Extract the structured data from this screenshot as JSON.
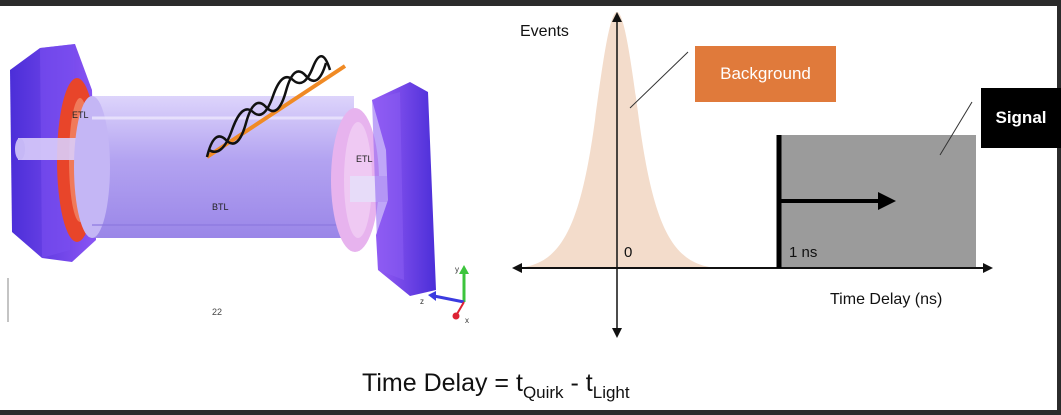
{
  "detector": {
    "etl_left_label": "ETL",
    "etl_right_label": "ETL",
    "btl_label": "BTL",
    "page_number": "22",
    "axis_y": "y",
    "axis_z": "z",
    "axis_x": "x"
  },
  "plot": {
    "y_axis_label": "Events",
    "x_axis_label": "Time Delay (ns)",
    "origin_label": "0",
    "threshold_label": "1 ns",
    "background_box_label": "Background",
    "signal_box_label": "Signal"
  },
  "formula": {
    "prefix": "Time Delay = t",
    "sub1": "Quirk",
    "mid": " - t",
    "sub2": "Light"
  },
  "colors": {
    "background_curve": "#f3dccb",
    "background_box": "#e07a3b",
    "signal_region": "#9b9b9b",
    "signal_box": "#000000",
    "detector_purple": "#6a3df0",
    "barrel": "#b8a8f2",
    "etl_red": "#e8452a",
    "track_orange": "#f08a24"
  }
}
